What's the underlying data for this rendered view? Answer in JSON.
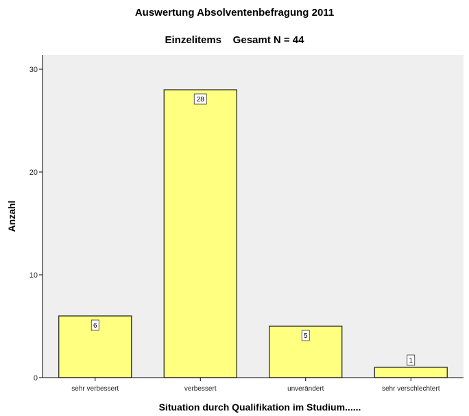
{
  "chart_data": {
    "type": "bar",
    "title": "Auswertung Absolventenbefragung 2011",
    "subtitle": "Einzelitems    Gesamt N = 44",
    "xlabel": "Situation durch Qualifikation im Studium......",
    "ylabel": "Anzahl",
    "categories": [
      "sehr verbessert",
      "verbessert",
      "unverändert",
      "sehr verschlechtert"
    ],
    "values": [
      6,
      28,
      5,
      1
    ],
    "data_labels": [
      "6",
      "28",
      "5",
      "1"
    ],
    "ylim": [
      0,
      30
    ],
    "yticks": [
      0,
      10,
      20,
      30
    ],
    "grid": false,
    "colors": {
      "bar": "#ffff80",
      "bar_stroke": "#2a2a2a",
      "plot_bg": "#efefef",
      "axis": "#000000"
    }
  }
}
